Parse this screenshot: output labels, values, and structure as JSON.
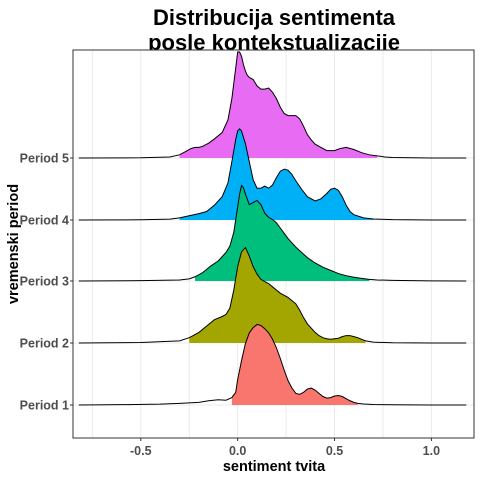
{
  "chart_data": {
    "type": "ridgeline",
    "title": [
      "Distribucija sentimenta",
      "posle kontekstualizacije"
    ],
    "xlabel": "sentiment tvita",
    "ylabel": "vremenski period",
    "xlim": [
      -0.85,
      1.22
    ],
    "x_ticks": [
      -0.5,
      0.0,
      0.5,
      1.0
    ],
    "x_tick_labels": [
      "-0.5",
      "0.0",
      "0.5",
      "1.0"
    ],
    "x_range": [
      -0.82,
      1.18
    ],
    "grid": true,
    "legend": "none",
    "series": [
      {
        "name": "Period 1",
        "color": "#F8766D",
        "fill_from": -0.05,
        "fill_to": 0.62,
        "x": [
          -0.82,
          -0.6,
          -0.4,
          -0.3,
          -0.2,
          -0.15,
          -0.1,
          -0.06,
          -0.03,
          -0.01,
          0.0,
          0.02,
          0.04,
          0.06,
          0.08,
          0.1,
          0.12,
          0.14,
          0.16,
          0.18,
          0.2,
          0.22,
          0.24,
          0.26,
          0.28,
          0.3,
          0.32,
          0.34,
          0.36,
          0.38,
          0.4,
          0.42,
          0.44,
          0.46,
          0.48,
          0.5,
          0.52,
          0.54,
          0.56,
          0.58,
          0.6,
          0.62,
          0.65,
          0.7,
          0.8,
          0.9,
          1.0,
          1.18
        ],
        "y": [
          0,
          0.003,
          0.008,
          0.015,
          0.025,
          0.04,
          0.05,
          0.045,
          0.07,
          0.12,
          0.24,
          0.42,
          0.58,
          0.68,
          0.73,
          0.76,
          0.75,
          0.72,
          0.68,
          0.62,
          0.54,
          0.44,
          0.33,
          0.23,
          0.16,
          0.11,
          0.1,
          0.12,
          0.15,
          0.16,
          0.14,
          0.11,
          0.08,
          0.065,
          0.07,
          0.085,
          0.09,
          0.08,
          0.06,
          0.04,
          0.025,
          0.015,
          0.01,
          0.005,
          0.002,
          0.001,
          0,
          0
        ]
      },
      {
        "name": "Period 2",
        "color": "#A3A500",
        "fill_from": -0.25,
        "fill_to": 0.66,
        "x": [
          -0.82,
          -0.5,
          -0.3,
          -0.25,
          -0.2,
          -0.16,
          -0.12,
          -0.08,
          -0.06,
          -0.04,
          -0.02,
          0.0,
          0.02,
          0.04,
          0.06,
          0.08,
          0.1,
          0.12,
          0.14,
          0.16,
          0.18,
          0.2,
          0.22,
          0.24,
          0.26,
          0.28,
          0.3,
          0.32,
          0.34,
          0.36,
          0.38,
          0.4,
          0.42,
          0.44,
          0.46,
          0.48,
          0.5,
          0.52,
          0.54,
          0.56,
          0.58,
          0.6,
          0.62,
          0.64,
          0.66,
          0.7,
          0.8,
          1.0,
          1.18
        ],
        "y": [
          0,
          0.005,
          0.02,
          0.05,
          0.1,
          0.16,
          0.22,
          0.25,
          0.27,
          0.33,
          0.5,
          0.72,
          0.86,
          0.9,
          0.82,
          0.72,
          0.65,
          0.6,
          0.58,
          0.56,
          0.53,
          0.5,
          0.47,
          0.45,
          0.43,
          0.4,
          0.37,
          0.31,
          0.24,
          0.18,
          0.14,
          0.1,
          0.07,
          0.05,
          0.04,
          0.035,
          0.04,
          0.045,
          0.06,
          0.07,
          0.07,
          0.06,
          0.05,
          0.035,
          0.02,
          0.008,
          0.002,
          0,
          0
        ]
      },
      {
        "name": "Period 3",
        "color": "#00BF7D",
        "fill_from": -0.22,
        "fill_to": 0.68,
        "x": [
          -0.82,
          -0.5,
          -0.3,
          -0.25,
          -0.22,
          -0.18,
          -0.14,
          -0.1,
          -0.08,
          -0.06,
          -0.04,
          -0.02,
          0.0,
          0.01,
          0.02,
          0.03,
          0.04,
          0.06,
          0.08,
          0.1,
          0.12,
          0.14,
          0.16,
          0.18,
          0.2,
          0.22,
          0.24,
          0.26,
          0.28,
          0.3,
          0.33,
          0.36,
          0.4,
          0.44,
          0.48,
          0.52,
          0.56,
          0.6,
          0.64,
          0.68,
          0.72,
          0.8,
          0.9,
          1.0,
          1.18
        ],
        "y": [
          0,
          0.003,
          0.01,
          0.02,
          0.04,
          0.08,
          0.14,
          0.19,
          0.23,
          0.27,
          0.33,
          0.46,
          0.7,
          0.82,
          0.9,
          0.88,
          0.82,
          0.72,
          0.74,
          0.76,
          0.72,
          0.64,
          0.6,
          0.58,
          0.55,
          0.5,
          0.45,
          0.4,
          0.36,
          0.32,
          0.27,
          0.22,
          0.17,
          0.13,
          0.1,
          0.07,
          0.05,
          0.035,
          0.025,
          0.015,
          0.01,
          0.006,
          0.003,
          0.001,
          0
        ]
      },
      {
        "name": "Period 4",
        "color": "#00B0F6",
        "fill_from": -0.33,
        "fill_to": 0.7,
        "x": [
          -0.82,
          -0.5,
          -0.35,
          -0.3,
          -0.25,
          -0.2,
          -0.16,
          -0.12,
          -0.08,
          -0.05,
          -0.03,
          -0.01,
          0.0,
          0.01,
          0.02,
          0.04,
          0.06,
          0.08,
          0.1,
          0.12,
          0.14,
          0.16,
          0.18,
          0.2,
          0.22,
          0.24,
          0.26,
          0.28,
          0.3,
          0.33,
          0.36,
          0.4,
          0.43,
          0.46,
          0.48,
          0.5,
          0.52,
          0.54,
          0.56,
          0.58,
          0.6,
          0.65,
          0.7,
          0.8,
          1.0,
          1.18
        ],
        "y": [
          0,
          0.002,
          0.008,
          0.02,
          0.04,
          0.06,
          0.08,
          0.14,
          0.22,
          0.35,
          0.55,
          0.76,
          0.84,
          0.86,
          0.84,
          0.72,
          0.55,
          0.38,
          0.3,
          0.3,
          0.32,
          0.3,
          0.33,
          0.4,
          0.46,
          0.48,
          0.47,
          0.43,
          0.37,
          0.29,
          0.22,
          0.18,
          0.2,
          0.25,
          0.29,
          0.3,
          0.28,
          0.22,
          0.14,
          0.08,
          0.05,
          0.02,
          0.01,
          0.003,
          0,
          0
        ]
      },
      {
        "name": "Period 5",
        "color": "#E76BF3",
        "fill_from": -0.32,
        "fill_to": 0.75,
        "x": [
          -0.82,
          -0.5,
          -0.35,
          -0.3,
          -0.27,
          -0.24,
          -0.22,
          -0.2,
          -0.18,
          -0.15,
          -0.12,
          -0.08,
          -0.05,
          -0.03,
          -0.01,
          0.0,
          0.01,
          0.02,
          0.03,
          0.04,
          0.05,
          0.06,
          0.08,
          0.1,
          0.12,
          0.14,
          0.16,
          0.18,
          0.2,
          0.22,
          0.24,
          0.26,
          0.28,
          0.3,
          0.32,
          0.34,
          0.36,
          0.38,
          0.4,
          0.43,
          0.46,
          0.5,
          0.53,
          0.56,
          0.6,
          0.64,
          0.68,
          0.72,
          0.76,
          0.8,
          0.9,
          1.0,
          1.18
        ],
        "y": [
          0,
          0.002,
          0.01,
          0.03,
          0.06,
          0.09,
          0.1,
          0.1,
          0.11,
          0.14,
          0.18,
          0.24,
          0.36,
          0.56,
          0.85,
          1.0,
          1.0,
          0.96,
          0.88,
          0.82,
          0.78,
          0.76,
          0.74,
          0.68,
          0.65,
          0.65,
          0.66,
          0.62,
          0.56,
          0.48,
          0.42,
          0.4,
          0.4,
          0.4,
          0.37,
          0.3,
          0.22,
          0.17,
          0.13,
          0.1,
          0.07,
          0.07,
          0.09,
          0.1,
          0.08,
          0.05,
          0.03,
          0.02,
          0.01,
          0.005,
          0.002,
          0,
          0
        ]
      }
    ]
  }
}
